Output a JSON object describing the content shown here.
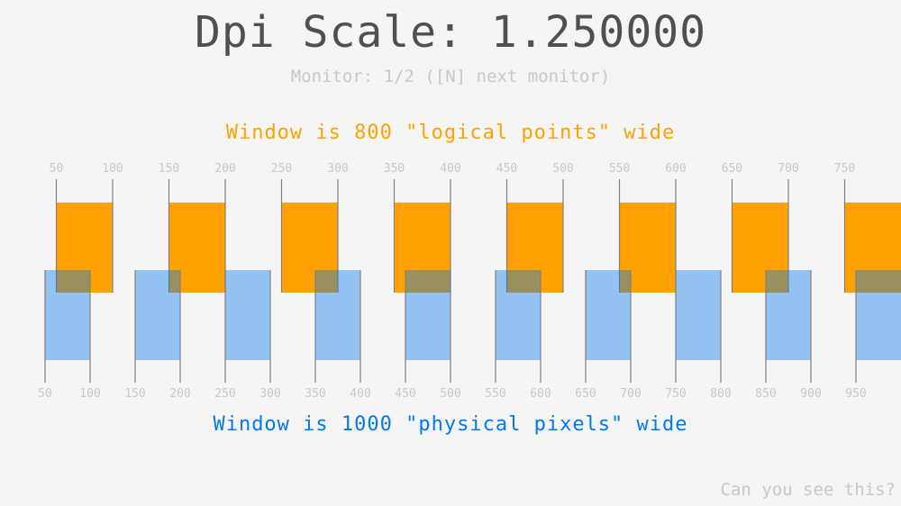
{
  "title": "Dpi Scale: 1.250000",
  "monitor_text": "Monitor: 1/2 ([N] next monitor)",
  "logical_text": "Window is 800 \"logical points\" wide",
  "physical_text": "Window is 1000 \"physical pixels\" wide",
  "corner_text": "Can you see this?",
  "dpi_scale": 1.25,
  "logical_ticks": [
    "50",
    "100",
    "150",
    "200",
    "250",
    "300",
    "350",
    "400",
    "450",
    "500",
    "550",
    "600",
    "650",
    "700",
    "750"
  ],
  "physical_ticks": [
    "50",
    "100",
    "150",
    "200",
    "250",
    "300",
    "350",
    "400",
    "450",
    "500",
    "550",
    "600",
    "650",
    "700",
    "750",
    "800",
    "850",
    "900",
    "950"
  ],
  "colors": {
    "logical": "#ffa100",
    "physical": "#0079f1",
    "background": "#f5f5f5",
    "tick_line": "#808080"
  }
}
